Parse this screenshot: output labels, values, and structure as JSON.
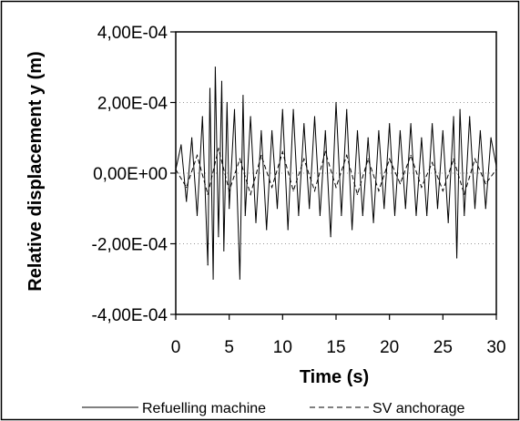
{
  "chart_data": {
    "type": "line",
    "title": "",
    "xlabel": "Time (s)",
    "ylabel": "Relative displacement y (m)",
    "xlim": [
      0,
      30
    ],
    "ylim": [
      -0.0004,
      0.0004
    ],
    "x_ticks": [
      0,
      5,
      10,
      15,
      20,
      25,
      30
    ],
    "x_tick_labels": [
      "0",
      "5",
      "10",
      "15",
      "20",
      "25",
      "30"
    ],
    "y_ticks": [
      0.0004,
      0.0002,
      0,
      -0.0002,
      -0.0004
    ],
    "y_tick_labels": [
      "4,00E-04",
      "2,00E-04",
      "0,00E+00",
      "-2,00E-04",
      "-4,00E-04"
    ],
    "grid": "horizontal dotted",
    "legend_position": "bottom",
    "series": [
      {
        "name": "Refuelling machine",
        "style": "solid",
        "color": "#000000",
        "x": [
          0,
          0.5,
          1,
          1.5,
          2,
          2.5,
          3,
          3.2,
          3.5,
          3.7,
          4,
          4.3,
          4.5,
          4.8,
          5,
          5.5,
          6,
          6.3,
          6.5,
          7,
          7.5,
          8,
          8.5,
          9,
          9.5,
          10,
          10.5,
          11,
          11.5,
          12,
          12.5,
          13,
          13.5,
          14,
          14.5,
          15,
          15.5,
          16,
          16.5,
          17,
          17.5,
          18,
          18.5,
          19,
          19.5,
          20,
          20.5,
          21,
          21.5,
          22,
          22.5,
          23,
          23.5,
          24,
          24.5,
          25,
          25.5,
          26,
          26.3,
          26.6,
          27,
          27.5,
          28,
          28.5,
          29,
          29.5,
          30
        ],
        "y": [
          1e-05,
          8e-05,
          -8e-05,
          0.0001,
          -0.00012,
          0.00016,
          -0.00026,
          0.00024,
          -0.0003,
          0.0003,
          -0.00018,
          0.00026,
          -0.00022,
          0.0002,
          -0.0001,
          0.00018,
          -0.0003,
          0.00022,
          -0.00012,
          0.00016,
          -0.00014,
          0.00012,
          -0.00016,
          0.00012,
          -0.0001,
          0.00018,
          -0.00016,
          0.00018,
          -0.00012,
          0.00014,
          -0.0001,
          0.00016,
          -0.00012,
          0.00012,
          -0.00018,
          0.0002,
          -0.00012,
          0.00018,
          -0.00016,
          0.00012,
          -0.00012,
          0.0001,
          -0.00014,
          0.00012,
          -0.0001,
          0.00014,
          -0.00012,
          0.00012,
          -0.0001,
          0.00014,
          -0.00012,
          0.0001,
          -0.00012,
          0.00014,
          -0.0001,
          0.00012,
          -0.00014,
          0.00016,
          -0.00024,
          0.00018,
          -0.00012,
          0.00016,
          -0.0001,
          0.00012,
          -0.0001,
          0.0001,
          2e-05
        ]
      },
      {
        "name": "SV anchorage",
        "style": "dashed",
        "color": "#000000",
        "x": [
          0,
          1,
          2,
          3,
          4,
          5,
          6,
          7,
          8,
          9,
          10,
          11,
          12,
          13,
          14,
          15,
          16,
          17,
          18,
          19,
          20,
          21,
          22,
          23,
          24,
          25,
          26,
          27,
          28,
          29,
          30
        ],
        "y": [
          1e-05,
          -4e-05,
          5e-05,
          -6e-05,
          7e-05,
          -5e-05,
          4e-05,
          -6e-05,
          5e-05,
          -4e-05,
          6e-05,
          -5e-05,
          4e-05,
          -5e-05,
          6e-05,
          -4e-05,
          5e-05,
          -6e-05,
          4e-05,
          -5e-05,
          4e-05,
          -3e-05,
          5e-05,
          -4e-05,
          3e-05,
          -5e-05,
          4e-05,
          -6e-05,
          4e-05,
          -3e-05,
          1e-05
        ]
      }
    ]
  }
}
